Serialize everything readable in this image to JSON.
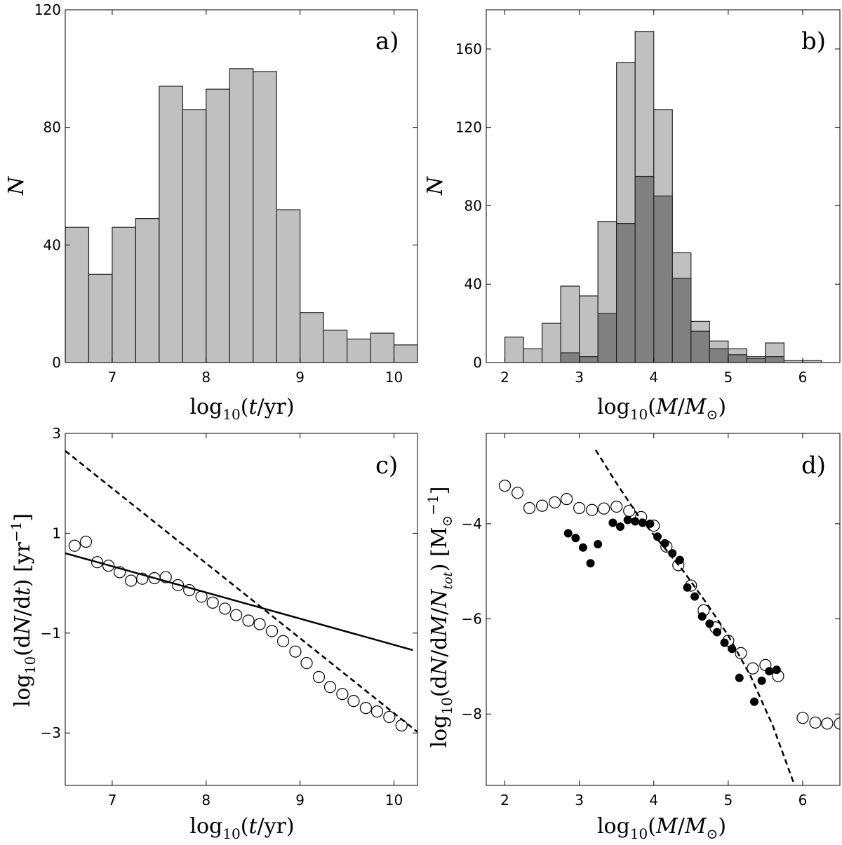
{
  "figure": {
    "panel_labels": [
      "a)",
      "b)",
      "c)",
      "d)"
    ]
  },
  "chart_data": [
    {
      "panel": "a)",
      "type": "bar",
      "xlabel": "log10(t/yr)",
      "ylabel": "N",
      "xlim": [
        6.5,
        10.25
      ],
      "ylim": [
        0,
        120
      ],
      "xticks": [
        7,
        8,
        9,
        10
      ],
      "yticks": [
        0,
        40,
        80,
        120
      ],
      "bin_width": 0.25,
      "series": [
        {
          "color": "#c0c0c0",
          "bins": [
            6.5,
            6.75,
            7.0,
            7.25,
            7.5,
            7.75,
            8.0,
            8.25,
            8.5,
            8.75,
            9.0,
            9.25,
            9.5,
            9.75,
            10.0
          ],
          "values": [
            46,
            30,
            46,
            49,
            94,
            86,
            93,
            100,
            99,
            52,
            17,
            11,
            8,
            10,
            6
          ]
        }
      ]
    },
    {
      "panel": "b)",
      "type": "bar",
      "xlabel": "log10(M/M⊙)",
      "ylabel": "N",
      "xlim": [
        1.75,
        6.5
      ],
      "ylim": [
        0,
        180
      ],
      "xticks": [
        2,
        3,
        4,
        5,
        6
      ],
      "yticks": [
        0,
        40,
        80,
        120,
        160
      ],
      "bin_width": 0.25,
      "series": [
        {
          "color": "#c0c0c0",
          "bins": [
            2.0,
            2.25,
            2.5,
            2.75,
            3.0,
            3.25,
            3.5,
            3.75,
            4.0,
            4.25,
            4.5,
            4.75,
            5.0,
            5.25,
            5.5,
            5.75,
            6.0
          ],
          "values": [
            13,
            7,
            20,
            39,
            34,
            72,
            153,
            169,
            129,
            56,
            21,
            11,
            7,
            3,
            10,
            1,
            1
          ]
        },
        {
          "color": "#808080",
          "bins": [
            2.75,
            3.0,
            3.25,
            3.5,
            3.75,
            4.0,
            4.25,
            4.5,
            4.75,
            5.0,
            5.25,
            5.5
          ],
          "values": [
            5,
            3,
            25,
            71,
            95,
            85,
            43,
            16,
            7,
            4,
            2,
            3
          ]
        }
      ]
    },
    {
      "panel": "c)",
      "type": "scatter",
      "xlabel": "log10(dN/dt) [yr^-1]",
      "xlabel_x": "log10(t/yr)",
      "ylabel": "log10(dN/dt) [yr^-1]",
      "xlim": [
        6.5,
        10.25
      ],
      "ylim": [
        -4.05,
        3.0
      ],
      "xticks": [
        7,
        8,
        9,
        10
      ],
      "yticks": [
        -3,
        -1,
        1,
        3
      ],
      "series": [
        {
          "marker": "open-circle",
          "x": [
            6.6,
            6.72,
            6.84,
            6.96,
            7.08,
            7.2,
            7.32,
            7.45,
            7.57,
            7.7,
            7.82,
            7.95,
            8.07,
            8.2,
            8.32,
            8.45,
            8.57,
            8.7,
            8.82,
            8.95,
            9.07,
            9.2,
            9.32,
            9.45,
            9.57,
            9.7,
            9.82,
            9.95,
            10.08
          ],
          "y": [
            0.75,
            0.83,
            0.42,
            0.35,
            0.22,
            0.05,
            0.09,
            0.1,
            0.12,
            -0.04,
            -0.14,
            -0.27,
            -0.39,
            -0.51,
            -0.64,
            -0.75,
            -0.82,
            -0.96,
            -1.16,
            -1.37,
            -1.6,
            -1.88,
            -2.08,
            -2.22,
            -2.36,
            -2.5,
            -2.57,
            -2.68,
            -2.85
          ]
        },
        {
          "style": "solid",
          "x": [
            6.5,
            10.2
          ],
          "y": [
            0.6,
            -1.34
          ]
        },
        {
          "style": "dashed",
          "x": [
            6.5,
            10.25
          ],
          "y": [
            2.65,
            -2.98
          ]
        }
      ]
    },
    {
      "panel": "d)",
      "type": "scatter",
      "xlabel": "log10(M/M⊙)",
      "ylabel": "log10(dN/dM/Ntot) [M⊙^-1]",
      "xlim": [
        1.75,
        6.5
      ],
      "ylim": [
        -9.5,
        -2.1
      ],
      "xticks": [
        2,
        3,
        4,
        5,
        6
      ],
      "yticks": [
        -8,
        -6,
        -4
      ],
      "series": [
        {
          "marker": "open-circle",
          "x": [
            2.0,
            2.17,
            2.33,
            2.5,
            2.67,
            2.83,
            3.0,
            3.17,
            3.33,
            3.5,
            3.67,
            3.83,
            4.0,
            4.17,
            4.33,
            4.5,
            4.67,
            4.83,
            5.0,
            5.17,
            5.33,
            5.5,
            5.67,
            6.0,
            6.17,
            6.33,
            6.5
          ],
          "y": [
            -3.2,
            -3.35,
            -3.67,
            -3.62,
            -3.55,
            -3.48,
            -3.67,
            -3.71,
            -3.68,
            -3.64,
            -3.73,
            -3.86,
            -4.04,
            -4.48,
            -4.87,
            -5.3,
            -5.82,
            -6.18,
            -6.46,
            -6.72,
            -7.04,
            -6.97,
            -7.2,
            -8.08,
            -8.18,
            -8.2,
            -8.2
          ]
        },
        {
          "marker": "filled-circle",
          "x": [
            2.85,
            2.95,
            3.05,
            3.15,
            3.25,
            3.45,
            3.55,
            3.65,
            3.75,
            3.85,
            3.95,
            4.05,
            4.15,
            4.25,
            4.35,
            4.45,
            4.55,
            4.65,
            4.75,
            4.85,
            4.95,
            5.05,
            5.15,
            5.35,
            5.45,
            5.55,
            5.65
          ],
          "y": [
            -4.2,
            -4.3,
            -4.5,
            -4.83,
            -4.43,
            -3.98,
            -4.06,
            -3.92,
            -3.95,
            -3.98,
            -4.0,
            -4.27,
            -4.41,
            -4.62,
            -4.76,
            -5.34,
            -5.53,
            -5.95,
            -6.1,
            -6.28,
            -6.5,
            -6.63,
            -7.24,
            -7.74,
            -7.3,
            -7.1,
            -7.07
          ]
        },
        {
          "style": "dashed",
          "x": [
            3.22,
            3.5,
            3.8,
            4.1,
            4.4,
            4.7,
            5.0,
            5.3,
            5.6,
            5.88
          ],
          "y": [
            -2.45,
            -3.15,
            -3.85,
            -4.42,
            -5.0,
            -5.65,
            -6.35,
            -7.2,
            -8.25,
            -9.45
          ]
        }
      ]
    }
  ]
}
